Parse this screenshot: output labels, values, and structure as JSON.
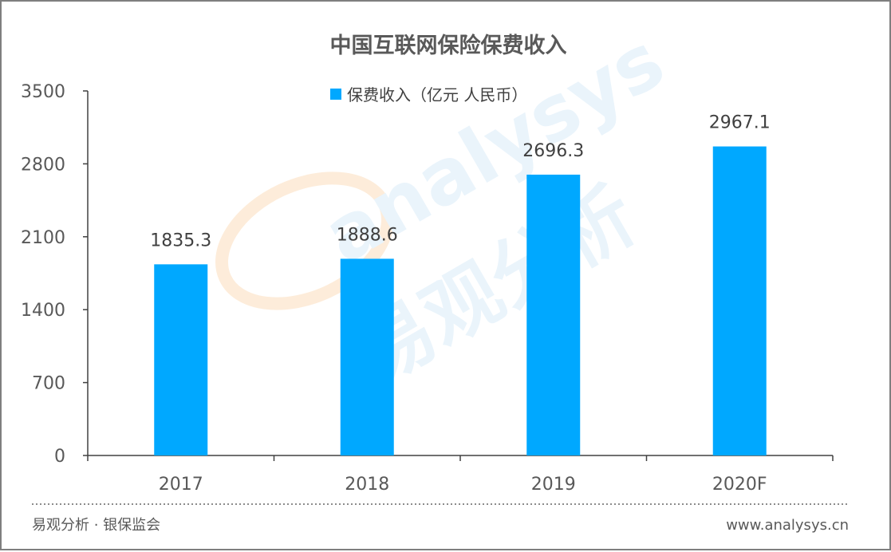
{
  "chart_data": {
    "type": "bar",
    "title": "中国互联网保险保费收入",
    "categories": [
      "2017",
      "2018",
      "2019",
      "2020F"
    ],
    "series": [
      {
        "name": "保费收入（亿元 人民币）",
        "values": [
          1835.3,
          1888.6,
          2696.3,
          2967.1
        ],
        "color": "#00a8ff"
      }
    ],
    "data_labels": [
      "1835.3",
      "1888.6",
      "2696.3",
      "2967.1"
    ],
    "y_ticks": [
      0,
      700,
      1400,
      2100,
      2800,
      3500
    ],
    "ylim": [
      0,
      3500
    ],
    "xlabel": "",
    "ylabel": "",
    "grid": false,
    "legend_position": "top-center"
  },
  "watermark": {
    "latin": "analysys",
    "chinese": "易观分析"
  },
  "footer": {
    "source": "易观分析 · 银保监会",
    "url": "www.analysys.cn"
  }
}
